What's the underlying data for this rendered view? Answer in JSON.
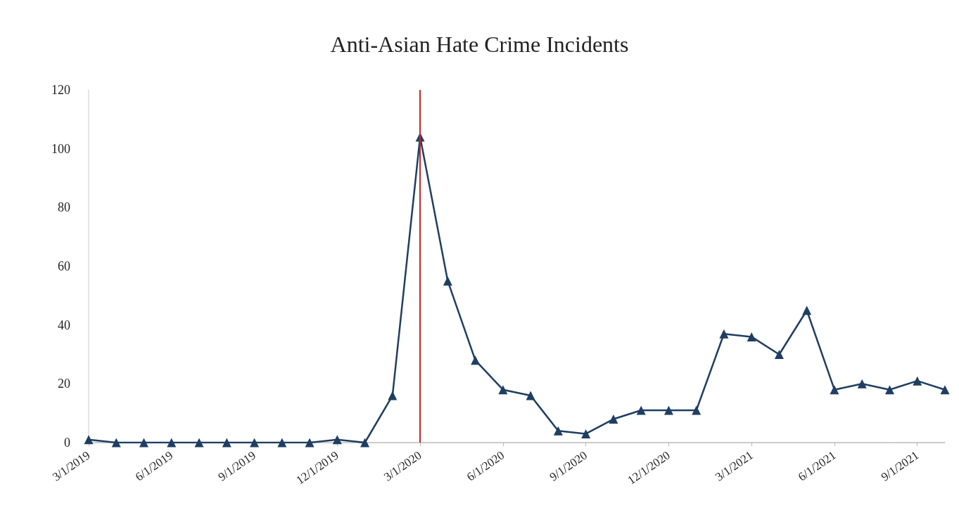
{
  "chart_data": {
    "type": "line",
    "title": "Anti-Asian Hate Crime Incidents",
    "categories": [
      "3/1/2019",
      null,
      null,
      "6/1/2019",
      null,
      null,
      "9/1/2019",
      null,
      null,
      "12/1/2019",
      null,
      null,
      "3/1/2020",
      null,
      null,
      "6/1/2020",
      null,
      null,
      "9/1/2020",
      null,
      null,
      "12/1/2020",
      null,
      null,
      "3/1/2021",
      null,
      null,
      "6/1/2021",
      null,
      null,
      "9/1/2021",
      null
    ],
    "series": [
      {
        "color": "#1f3e62",
        "values": [
          1,
          0,
          0,
          0,
          0,
          0,
          0,
          0,
          0,
          1,
          0,
          16,
          104,
          55,
          28,
          18,
          16,
          4,
          3,
          8,
          11,
          11,
          11,
          37,
          36,
          30,
          45,
          18,
          20,
          18,
          21,
          18
        ]
      }
    ],
    "ylim": [
      0,
      120
    ],
    "yticks": [
      0,
      20,
      40,
      60,
      80,
      100,
      120
    ],
    "grid": false,
    "marker": "triangle",
    "line_style": "solid",
    "ref_lines": [
      {
        "axis": "x",
        "value": "3/1/2020",
        "label": null,
        "color": "#c0282d"
      }
    ]
  }
}
